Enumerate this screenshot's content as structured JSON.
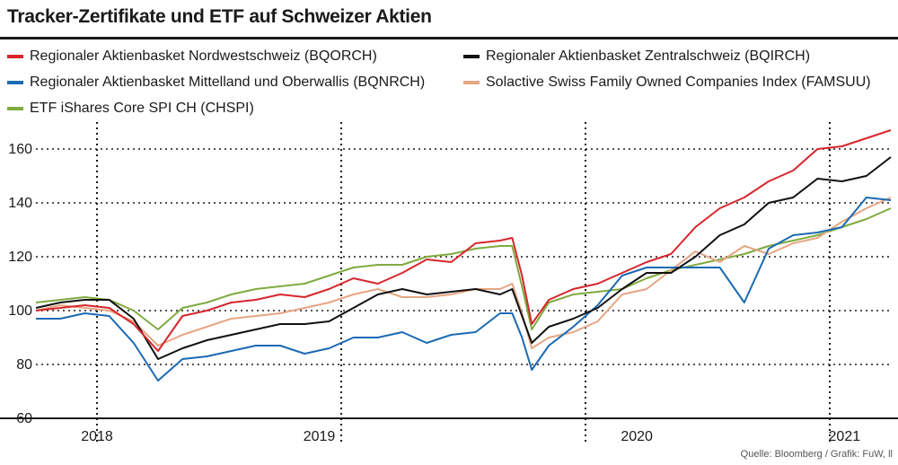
{
  "title": "Tracker-Zertifikate und ETF auf Schweizer Aktien",
  "source": "Quelle: Bloomberg / Grafik: FuW, ll",
  "colors": {
    "BQORCH": "#d7262c",
    "BQIRCH": "#111111",
    "BQNRCH": "#1b6ab3",
    "FAMSUU": "#e6a583",
    "CHSPI": "#7fab3f"
  },
  "chart_data": {
    "type": "line",
    "title": "Tracker-Zertifikate und ETF auf Schweizer Aktien",
    "xlabel": "",
    "ylabel": "",
    "ylim": [
      60,
      170
    ],
    "xlim": [
      2017.75,
      2021.25
    ],
    "yticks": [
      60,
      80,
      100,
      120,
      140,
      160
    ],
    "year_dividers": [
      2018.0,
      2019.0,
      2020.0,
      2021.0
    ],
    "x_tick_labels": [
      {
        "label": "2018",
        "x": 2018.0
      },
      {
        "label": "2019",
        "x": 2018.91
      },
      {
        "label": "2020",
        "x": 2020.21
      },
      {
        "label": "2021",
        "x": 2021.06
      }
    ],
    "grid": true,
    "legend_position": "top",
    "series": [
      {
        "key": "BQORCH",
        "name": "Regionaler Aktienbasket Nordwestschweiz (BQORCH)",
        "x": [
          2017.75,
          2017.85,
          2017.95,
          2018.05,
          2018.15,
          2018.25,
          2018.35,
          2018.45,
          2018.55,
          2018.65,
          2018.75,
          2018.85,
          2018.95,
          2019.05,
          2019.15,
          2019.25,
          2019.35,
          2019.45,
          2019.55,
          2019.65,
          2019.7,
          2019.74,
          2019.78,
          2019.85,
          2019.95,
          2020.05,
          2020.15,
          2020.25,
          2020.35,
          2020.45,
          2020.55,
          2020.65,
          2020.75,
          2020.85,
          2020.95,
          2021.05,
          2021.15,
          2021.25
        ],
        "values": [
          100,
          101,
          102,
          101,
          95,
          85,
          98,
          100,
          103,
          104,
          106,
          105,
          108,
          112,
          110,
          114,
          119,
          118,
          125,
          126,
          127,
          113,
          95,
          104,
          108,
          110,
          114,
          118,
          121,
          131,
          138,
          142,
          148,
          152,
          160,
          161,
          164,
          167
        ]
      },
      {
        "key": "BQIRCH",
        "name": "Regionaler Aktienbasket Zentralschweiz (BQIRCH)",
        "x": [
          2017.75,
          2017.85,
          2017.95,
          2018.05,
          2018.15,
          2018.25,
          2018.35,
          2018.45,
          2018.55,
          2018.65,
          2018.75,
          2018.85,
          2018.95,
          2019.05,
          2019.15,
          2019.25,
          2019.35,
          2019.45,
          2019.55,
          2019.65,
          2019.7,
          2019.74,
          2019.78,
          2019.85,
          2019.95,
          2020.05,
          2020.15,
          2020.25,
          2020.35,
          2020.45,
          2020.55,
          2020.65,
          2020.75,
          2020.85,
          2020.95,
          2021.05,
          2021.15,
          2021.25
        ],
        "values": [
          101,
          103,
          104,
          104,
          97,
          82,
          86,
          89,
          91,
          93,
          95,
          95,
          96,
          101,
          106,
          108,
          106,
          107,
          108,
          106,
          108,
          98,
          88,
          94,
          97,
          101,
          108,
          114,
          114,
          120,
          128,
          132,
          140,
          142,
          149,
          148,
          150,
          157
        ]
      },
      {
        "key": "BQNRCH",
        "name": "Regionaler Aktienbasket Mittelland und Oberwallis (BQNRCH)",
        "x": [
          2017.75,
          2017.85,
          2017.95,
          2018.05,
          2018.15,
          2018.25,
          2018.35,
          2018.45,
          2018.55,
          2018.65,
          2018.75,
          2018.85,
          2018.95,
          2019.05,
          2019.15,
          2019.25,
          2019.35,
          2019.45,
          2019.55,
          2019.65,
          2019.7,
          2019.74,
          2019.78,
          2019.85,
          2019.95,
          2020.05,
          2020.15,
          2020.25,
          2020.35,
          2020.45,
          2020.55,
          2020.65,
          2020.75,
          2020.85,
          2020.95,
          2021.05,
          2021.15,
          2021.25
        ],
        "values": [
          97,
          97,
          99,
          98,
          88,
          74,
          82,
          83,
          85,
          87,
          87,
          84,
          86,
          90,
          90,
          92,
          88,
          91,
          92,
          99,
          99,
          90,
          78,
          87,
          94,
          102,
          113,
          116,
          116,
          116,
          116,
          103,
          123,
          128,
          129,
          131,
          142,
          141
        ]
      },
      {
        "key": "FAMSUU",
        "name": "Solactive Swiss Family Owned Companies Index (FAMSUU)",
        "x": [
          2017.75,
          2017.85,
          2017.95,
          2018.05,
          2018.15,
          2018.25,
          2018.35,
          2018.45,
          2018.55,
          2018.65,
          2018.75,
          2018.85,
          2018.95,
          2019.05,
          2019.15,
          2019.25,
          2019.35,
          2019.45,
          2019.55,
          2019.65,
          2019.7,
          2019.74,
          2019.78,
          2019.85,
          2019.95,
          2020.05,
          2020.15,
          2020.25,
          2020.35,
          2020.45,
          2020.55,
          2020.65,
          2020.75,
          2020.85,
          2020.95,
          2021.05,
          2021.15,
          2021.25
        ],
        "values": [
          100,
          102,
          101,
          100,
          96,
          87,
          91,
          94,
          97,
          98,
          99,
          101,
          103,
          106,
          108,
          105,
          105,
          106,
          108,
          108,
          110,
          99,
          86,
          90,
          92,
          96,
          106,
          108,
          115,
          122,
          118,
          124,
          121,
          125,
          127,
          133,
          138,
          142
        ]
      },
      {
        "key": "CHSPI",
        "name": "ETF iShares Core SPI CH (CHSPI)",
        "x": [
          2017.75,
          2017.85,
          2017.95,
          2018.05,
          2018.15,
          2018.25,
          2018.35,
          2018.45,
          2018.55,
          2018.65,
          2018.75,
          2018.85,
          2018.95,
          2019.05,
          2019.15,
          2019.25,
          2019.35,
          2019.45,
          2019.55,
          2019.65,
          2019.7,
          2019.74,
          2019.78,
          2019.85,
          2019.95,
          2020.05,
          2020.15,
          2020.25,
          2020.35,
          2020.45,
          2020.55,
          2020.65,
          2020.75,
          2020.85,
          2020.95,
          2021.05,
          2021.15,
          2021.25
        ],
        "values": [
          103,
          104,
          105,
          104,
          100,
          93,
          101,
          103,
          106,
          108,
          109,
          110,
          113,
          116,
          117,
          117,
          120,
          121,
          123,
          124,
          124,
          109,
          93,
          103,
          106,
          107,
          108,
          112,
          115,
          117,
          119,
          121,
          124,
          126,
          128,
          131,
          134,
          138
        ]
      }
    ]
  }
}
